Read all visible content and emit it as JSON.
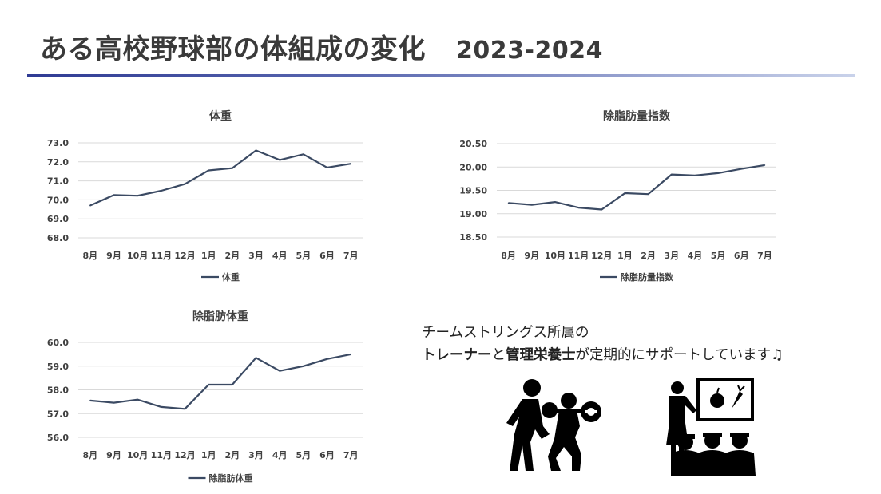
{
  "page": {
    "title": "ある高校野球部の体組成の変化",
    "year": "2023-2024"
  },
  "support_text": {
    "line1": "チームストリングス所属の",
    "trainer": "トレーナー",
    "and": "と",
    "dietitian": "管理栄養士",
    "rest": "が定期的にサポートしています♫"
  },
  "colors": {
    "line": "#3b4a63",
    "grid": "#d9d9d9",
    "rule_start": "#2f3b94",
    "rule_end": "#c9d2ea"
  },
  "icons": [
    "trainer-lifting-icon",
    "dietitian-teaching-icon"
  ],
  "chart_data": [
    {
      "id": "weight",
      "type": "line",
      "title": "体重",
      "categories": [
        "8月",
        "9月",
        "10月",
        "11月",
        "12月",
        "1月",
        "2月",
        "3月",
        "4月",
        "5月",
        "6月",
        "7月"
      ],
      "series": [
        {
          "name": "体重",
          "values": [
            69.7,
            70.25,
            70.22,
            70.48,
            70.83,
            71.55,
            71.67,
            72.6,
            72.1,
            72.4,
            71.7,
            71.9
          ]
        }
      ],
      "ylim": [
        68.0,
        73.0
      ],
      "yticks": [
        68.0,
        69.0,
        70.0,
        71.0,
        72.0,
        73.0
      ],
      "ytick_labels": [
        "68.0",
        "69.0",
        "70.0",
        "71.0",
        "72.0",
        "73.0"
      ],
      "legend": "bottom",
      "grid": true
    },
    {
      "id": "ffmi",
      "type": "line",
      "title": "除脂肪量指数",
      "categories": [
        "8月",
        "9月",
        "10月",
        "11月",
        "12月",
        "1月",
        "2月",
        "3月",
        "4月",
        "5月",
        "6月",
        "7月"
      ],
      "series": [
        {
          "name": "除脂肪量指数",
          "values": [
            19.23,
            19.19,
            19.25,
            19.13,
            19.09,
            19.44,
            19.42,
            19.84,
            19.82,
            19.87,
            19.96,
            20.04
          ]
        }
      ],
      "ylim": [
        18.5,
        20.5
      ],
      "yticks": [
        18.5,
        19.0,
        19.5,
        20.0,
        20.5
      ],
      "ytick_labels": [
        "18.50",
        "19.00",
        "19.50",
        "20.00",
        "20.50"
      ],
      "legend": "bottom",
      "grid": true
    },
    {
      "id": "lbm",
      "type": "line",
      "title": "除脂肪体重",
      "categories": [
        "8月",
        "9月",
        "10月",
        "11月",
        "12月",
        "1月",
        "2月",
        "3月",
        "4月",
        "5月",
        "6月",
        "7月"
      ],
      "series": [
        {
          "name": "除脂肪体重",
          "values": [
            57.55,
            57.46,
            57.59,
            57.28,
            57.2,
            58.22,
            58.22,
            59.35,
            58.8,
            59.0,
            59.3,
            59.5
          ]
        }
      ],
      "ylim": [
        56.0,
        60.0
      ],
      "yticks": [
        56.0,
        57.0,
        58.0,
        59.0,
        60.0
      ],
      "ytick_labels": [
        "56.0",
        "57.0",
        "58.0",
        "59.0",
        "60.0"
      ],
      "legend": "bottom",
      "grid": true
    }
  ]
}
